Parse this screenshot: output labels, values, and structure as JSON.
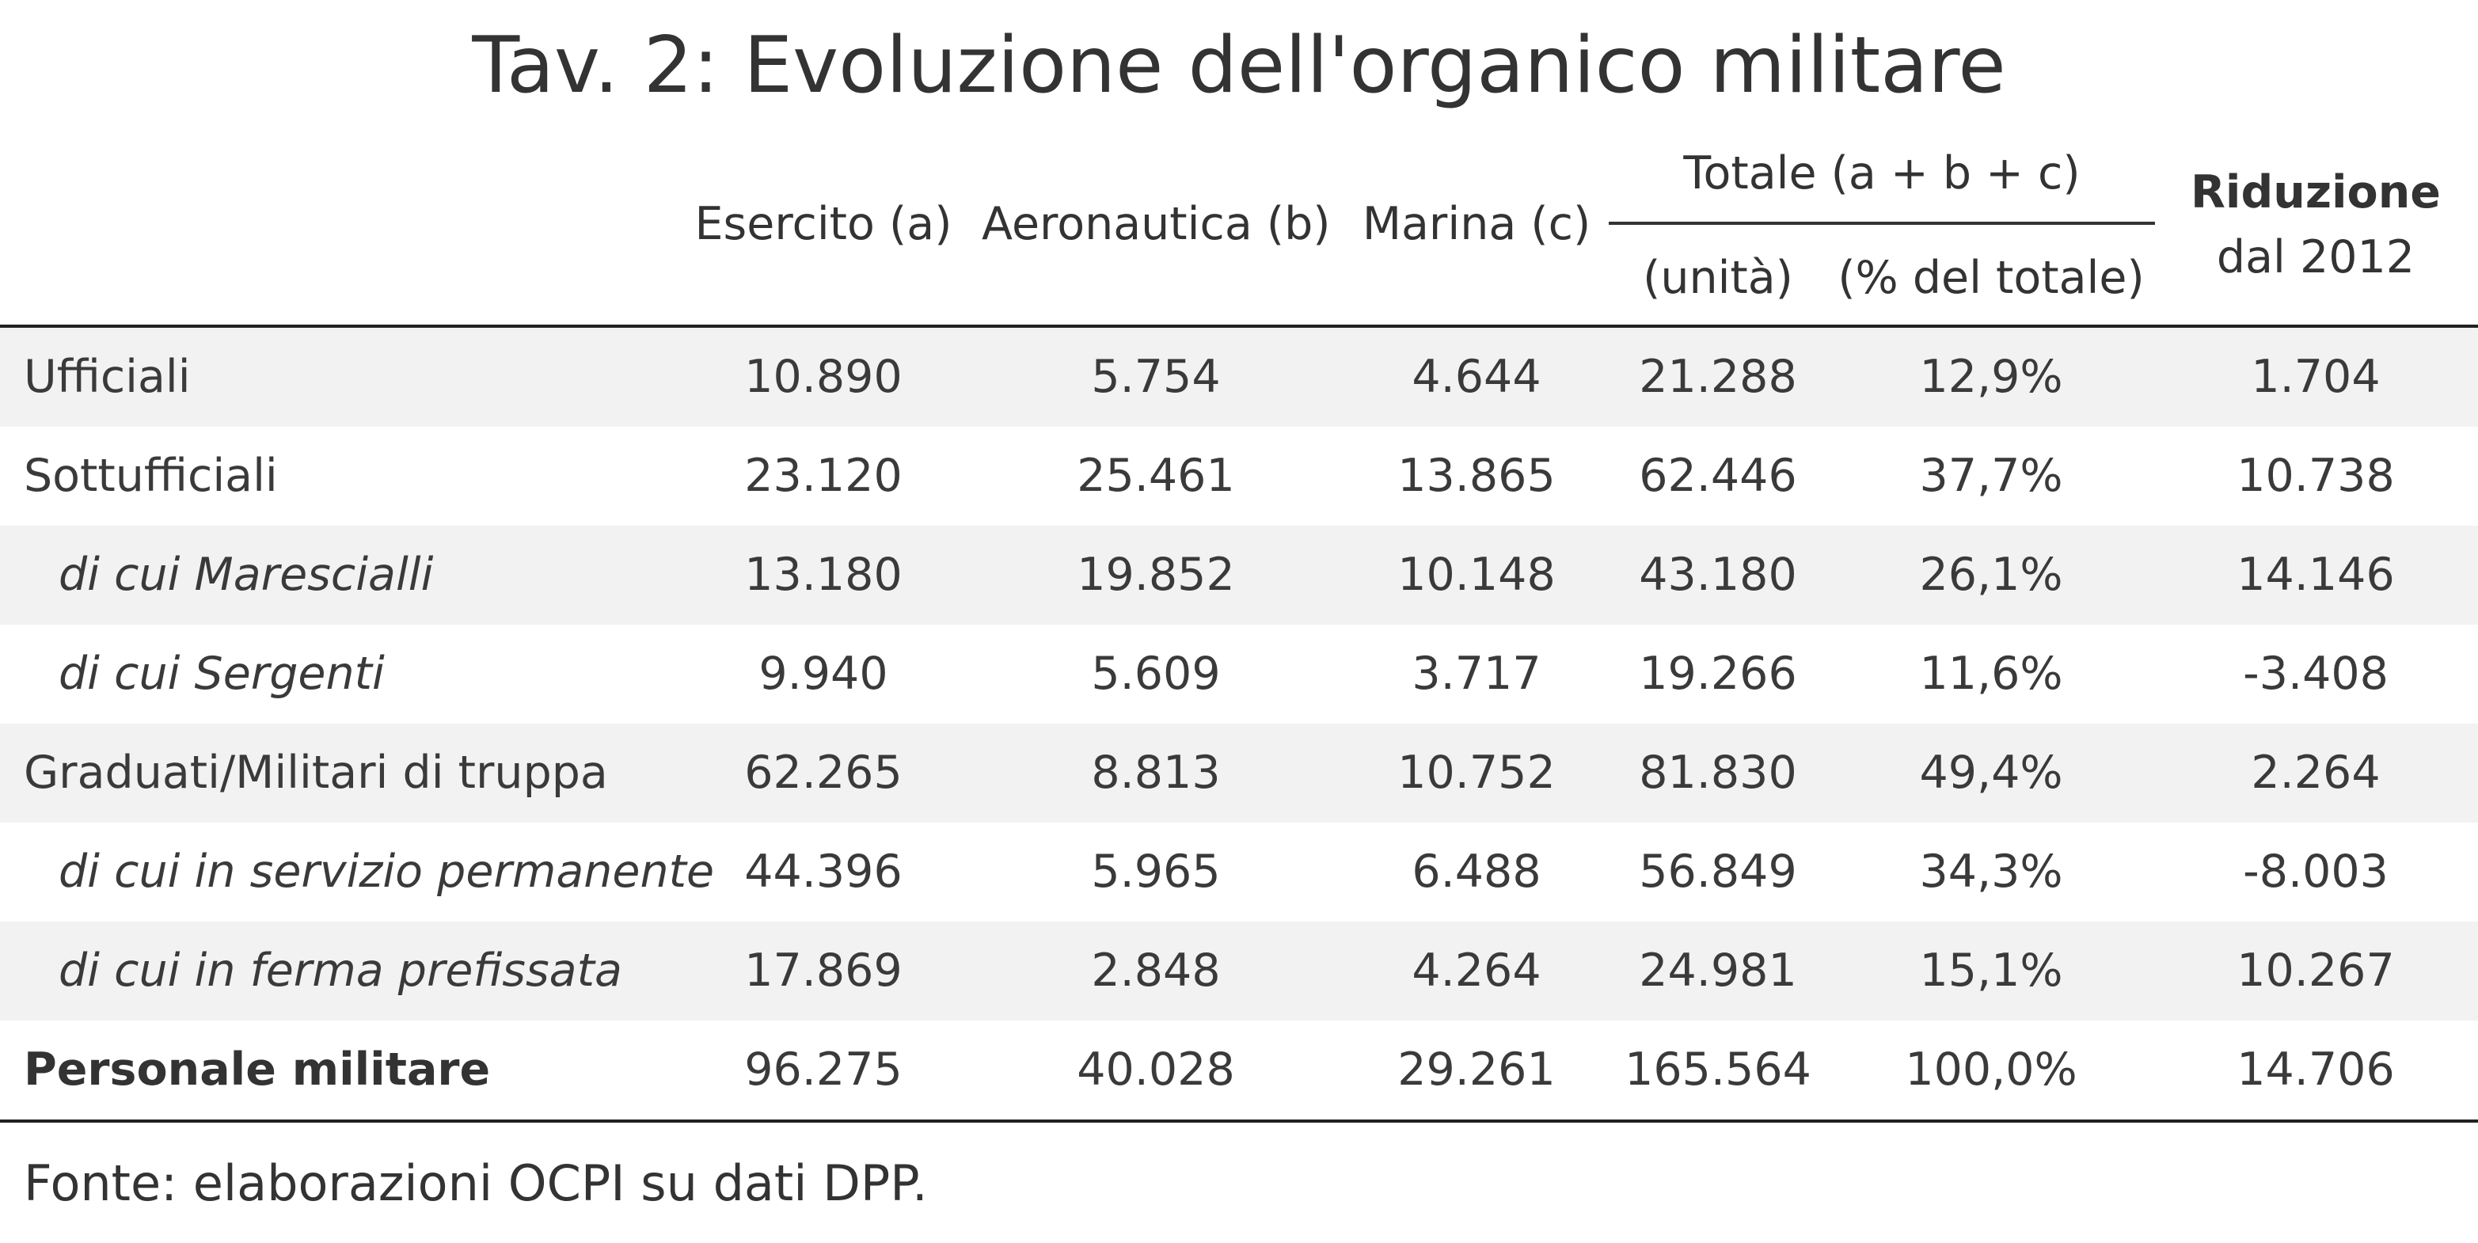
{
  "chart_data": {
    "type": "table",
    "title": "Tav. 2: Evoluzione dell'organico militare",
    "columns": {
      "esercito": "Esercito (a)",
      "aeronautica": "Aeronautica (b)",
      "marina": "Marina (c)",
      "totale_group": "Totale (a + b + c)",
      "unita": "(unità)",
      "percentuale": "(% del totale)",
      "riduzione_line1": "Riduzione",
      "riduzione_line2": "dal 2012"
    },
    "rows": [
      {
        "label": "Ufficiali",
        "style": "normal",
        "esercito": "10.890",
        "aeronautica": "5.754",
        "marina": "4.644",
        "unita": "21.288",
        "percentuale": "12,9%",
        "riduzione": "1.704"
      },
      {
        "label": "Sottufficiali",
        "style": "normal",
        "esercito": "23.120",
        "aeronautica": "25.461",
        "marina": "13.865",
        "unita": "62.446",
        "percentuale": "37,7%",
        "riduzione": "10.738"
      },
      {
        "label": "di cui Marescialli",
        "style": "sub",
        "esercito": "13.180",
        "aeronautica": "19.852",
        "marina": "10.148",
        "unita": "43.180",
        "percentuale": "26,1%",
        "riduzione": "14.146"
      },
      {
        "label": "di cui Sergenti",
        "style": "sub",
        "esercito": "9.940",
        "aeronautica": "5.609",
        "marina": "3.717",
        "unita": "19.266",
        "percentuale": "11,6%",
        "riduzione": "-3.408"
      },
      {
        "label": "Graduati/Militari di truppa",
        "style": "normal",
        "esercito": "62.265",
        "aeronautica": "8.813",
        "marina": "10.752",
        "unita": "81.830",
        "percentuale": "49,4%",
        "riduzione": "2.264"
      },
      {
        "label": "di cui in servizio permanente",
        "style": "sub",
        "esercito": "44.396",
        "aeronautica": "5.965",
        "marina": "6.488",
        "unita": "56.849",
        "percentuale": "34,3%",
        "riduzione": "-8.003"
      },
      {
        "label": "di cui in ferma prefissata",
        "style": "sub",
        "esercito": "17.869",
        "aeronautica": "2.848",
        "marina": "4.264",
        "unita": "24.981",
        "percentuale": "15,1%",
        "riduzione": "10.267"
      },
      {
        "label": "Personale militare",
        "style": "total",
        "esercito": "96.275",
        "aeronautica": "40.028",
        "marina": "29.261",
        "unita": "165.564",
        "percentuale": "100,0%",
        "riduzione": "14.706"
      }
    ],
    "source": "Fonte: elaborazioni OCPI su dati DPP.",
    "colors": {
      "shaded_row": "#f2f2f2",
      "rule": "#222222",
      "text": "#3a3a3a"
    }
  }
}
